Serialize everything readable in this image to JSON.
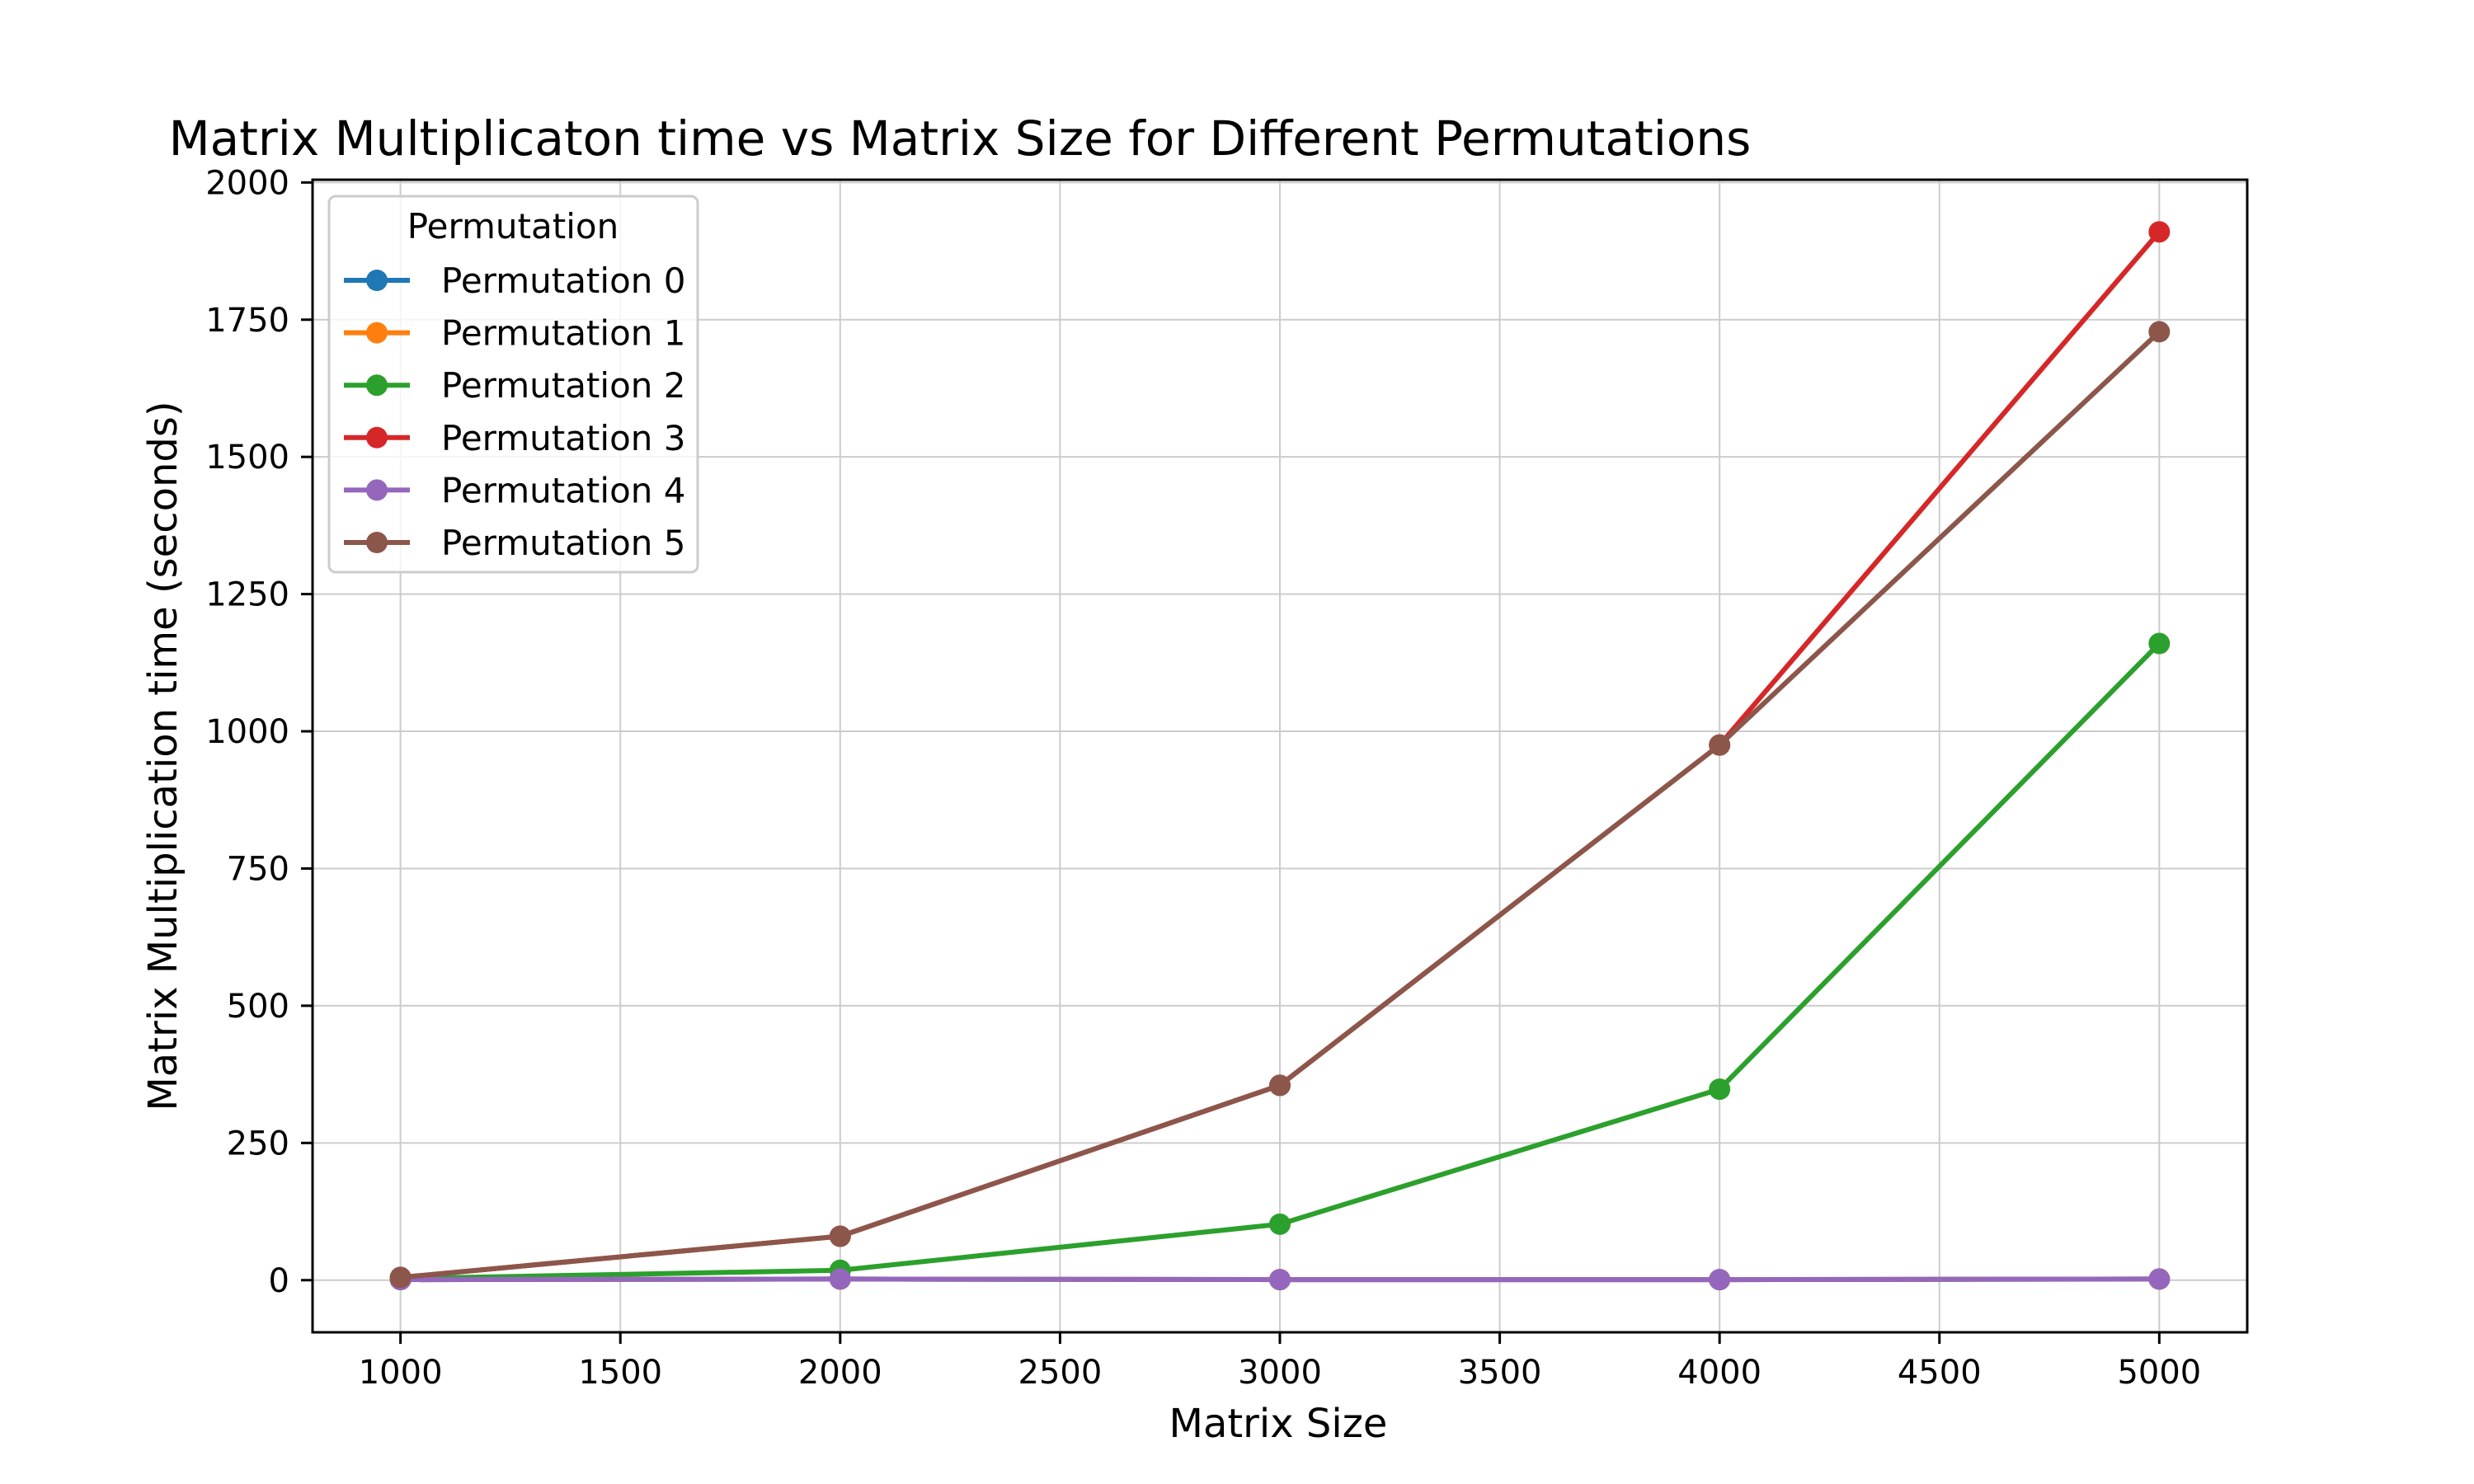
{
  "chart_data": {
    "type": "line",
    "title": "Matrix Multiplicaton time vs Matrix Size for Different Permutations",
    "xlabel": "Matrix Size",
    "ylabel": "Matrix Multiplication time (seconds)",
    "x": [
      1000,
      2000,
      3000,
      4000,
      5000
    ],
    "xlim": [
      800,
      5200
    ],
    "ylim": [
      -95,
      2005
    ],
    "xticks": [
      1000,
      1500,
      2000,
      2500,
      3000,
      3500,
      4000,
      4500,
      5000
    ],
    "yticks": [
      0,
      250,
      500,
      750,
      1000,
      1250,
      1500,
      1750,
      2000
    ],
    "grid": true,
    "legend": {
      "title": "Permutation",
      "placement": "upper-left"
    },
    "series": [
      {
        "name": "Permutation 0",
        "color": "#1f77b4",
        "values": [
          1,
          2,
          1,
          1,
          2
        ]
      },
      {
        "name": "Permutation 1",
        "color": "#ff7f0e",
        "values": [
          1,
          2,
          1,
          1,
          2
        ]
      },
      {
        "name": "Permutation 2",
        "color": "#2ca02c",
        "values": [
          3,
          18,
          102,
          348,
          1160
        ]
      },
      {
        "name": "Permutation 3",
        "color": "#d62728",
        "values": [
          5,
          80,
          355,
          975,
          1910
        ]
      },
      {
        "name": "Permutation 4",
        "color": "#9467bd",
        "values": [
          1,
          2,
          1,
          1,
          2
        ]
      },
      {
        "name": "Permutation 5",
        "color": "#8c564b",
        "values": [
          5,
          80,
          355,
          975,
          1728
        ]
      }
    ]
  }
}
